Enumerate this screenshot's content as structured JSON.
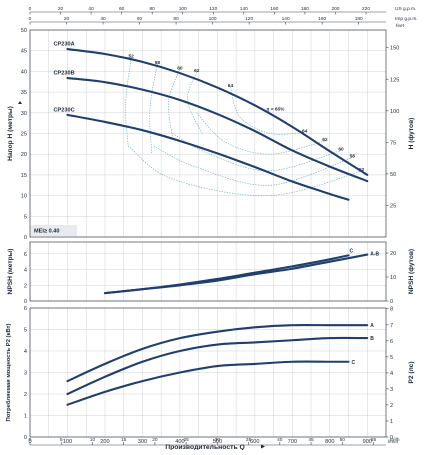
{
  "top_axes": {
    "us_ticks": [
      "0",
      "20",
      "40",
      "60",
      "80",
      "100",
      "120",
      "140",
      "160",
      "180",
      "200",
      "220"
    ],
    "us_unit": "US g.p.m.",
    "imp_ticks": [
      "0",
      "20",
      "40",
      "60",
      "80",
      "100",
      "120",
      "140",
      "160",
      "180"
    ],
    "imp_unit": "Imp g.p.m."
  },
  "x_axis": {
    "label": "Производительность Q",
    "unit": "l/min",
    "unit2": "m³/h",
    "ticks": [
      "0",
      "100",
      "200",
      "300",
      "400",
      "500",
      "600",
      "700",
      "800",
      "900"
    ],
    "m3h_ticks": [
      "0",
      "5",
      "10",
      "15",
      "20",
      "25",
      "30",
      "35",
      "40",
      "45",
      "50",
      "55"
    ]
  },
  "mei_label": "MEI≥ 0.40",
  "chart_data": [
    {
      "type": "line",
      "ylabel": "Напор H (метры)",
      "ylabel_right": "H (футов)",
      "right_unit": "feet",
      "ylim": [
        0,
        50
      ],
      "xlim": [
        0,
        950
      ],
      "yticks": [
        "0",
        "5",
        "10",
        "15",
        "20",
        "25",
        "30",
        "35",
        "40",
        "45",
        "50"
      ],
      "yticks_right": [
        "25",
        "50",
        "75",
        "100",
        "125",
        "150"
      ],
      "series": [
        {
          "name": "CP230A",
          "x": [
            100,
            200,
            300,
            400,
            500,
            600,
            700,
            800,
            900
          ],
          "y": [
            45.4,
            44.2,
            42.3,
            39.6,
            36.1,
            31.8,
            26.6,
            20.7,
            15.0
          ]
        },
        {
          "name": "CP230B",
          "x": [
            100,
            200,
            300,
            400,
            500,
            600,
            700,
            800,
            900
          ],
          "y": [
            38.4,
            37.4,
            35.6,
            33.1,
            29.7,
            25.6,
            20.9,
            17.0,
            13.5
          ]
        },
        {
          "name": "CP230C",
          "x": [
            100,
            200,
            300,
            400,
            500,
            600,
            700,
            800,
            850
          ],
          "y": [
            29.5,
            27.8,
            25.8,
            23.2,
            20.2,
            16.9,
            13.4,
            10.4,
            9.0
          ]
        }
      ],
      "efficiency_labels": [
        {
          "text": "52",
          "x": 270,
          "y": 43.3
        },
        {
          "text": "58",
          "x": 340,
          "y": 41.8
        },
        {
          "text": "60",
          "x": 400,
          "y": 40.5
        },
        {
          "text": "62",
          "x": 445,
          "y": 39.8
        },
        {
          "text": "64",
          "x": 535,
          "y": 36.2
        },
        {
          "text": "η = 65%",
          "x": 655,
          "y": 30.5
        },
        {
          "text": "64",
          "x": 733,
          "y": 25.3
        },
        {
          "text": "62",
          "x": 787,
          "y": 23.2
        },
        {
          "text": "60",
          "x": 830,
          "y": 20.9
        },
        {
          "text": "58",
          "x": 860,
          "y": 19.2
        },
        {
          "text": "52",
          "x": 885,
          "y": 15.9
        }
      ]
    },
    {
      "type": "line",
      "ylabel": "NPSH (метры)",
      "ylabel_right": "NPSH (футов)",
      "ylim": [
        0,
        7.5
      ],
      "xlim": [
        0,
        950
      ],
      "yticks": [
        "0",
        "2",
        "4",
        "6"
      ],
      "yticks_right": [
        "0",
        "10",
        "20"
      ],
      "series": [
        {
          "name": "A-B",
          "x": [
            200,
            300,
            400,
            500,
            600,
            700,
            800,
            900
          ],
          "y": [
            1.0,
            1.5,
            2.0,
            2.6,
            3.4,
            4.1,
            5.0,
            5.9
          ]
        },
        {
          "name": "C",
          "x": [
            200,
            300,
            400,
            500,
            600,
            700,
            800,
            850
          ],
          "y": [
            1.0,
            1.5,
            2.1,
            2.8,
            3.6,
            4.4,
            5.3,
            5.8
          ]
        }
      ]
    },
    {
      "type": "line",
      "ylabel": "Потребляемая мощность P2 (кВт)",
      "ylabel_right": "P2 (лс)",
      "ylim": [
        0,
        6
      ],
      "xlim": [
        0,
        950
      ],
      "yticks": [
        "0",
        "1",
        "2",
        "3",
        "4",
        "5",
        "6"
      ],
      "yticks_right": [
        "0",
        "1",
        "2",
        "3",
        "4",
        "5",
        "6",
        "7",
        "8"
      ],
      "series": [
        {
          "name": "A",
          "x": [
            100,
            200,
            300,
            400,
            500,
            600,
            700,
            800,
            900
          ],
          "y": [
            2.6,
            3.4,
            4.1,
            4.6,
            4.9,
            5.1,
            5.2,
            5.2,
            5.2
          ]
        },
        {
          "name": "B",
          "x": [
            100,
            200,
            300,
            400,
            500,
            600,
            700,
            800,
            900
          ],
          "y": [
            2.0,
            2.8,
            3.5,
            4.0,
            4.3,
            4.4,
            4.5,
            4.6,
            4.6
          ]
        },
        {
          "name": "C",
          "x": [
            100,
            200,
            300,
            400,
            500,
            600,
            700,
            800,
            850
          ],
          "y": [
            1.5,
            2.1,
            2.6,
            3.0,
            3.3,
            3.4,
            3.5,
            3.5,
            3.5
          ]
        }
      ]
    }
  ]
}
